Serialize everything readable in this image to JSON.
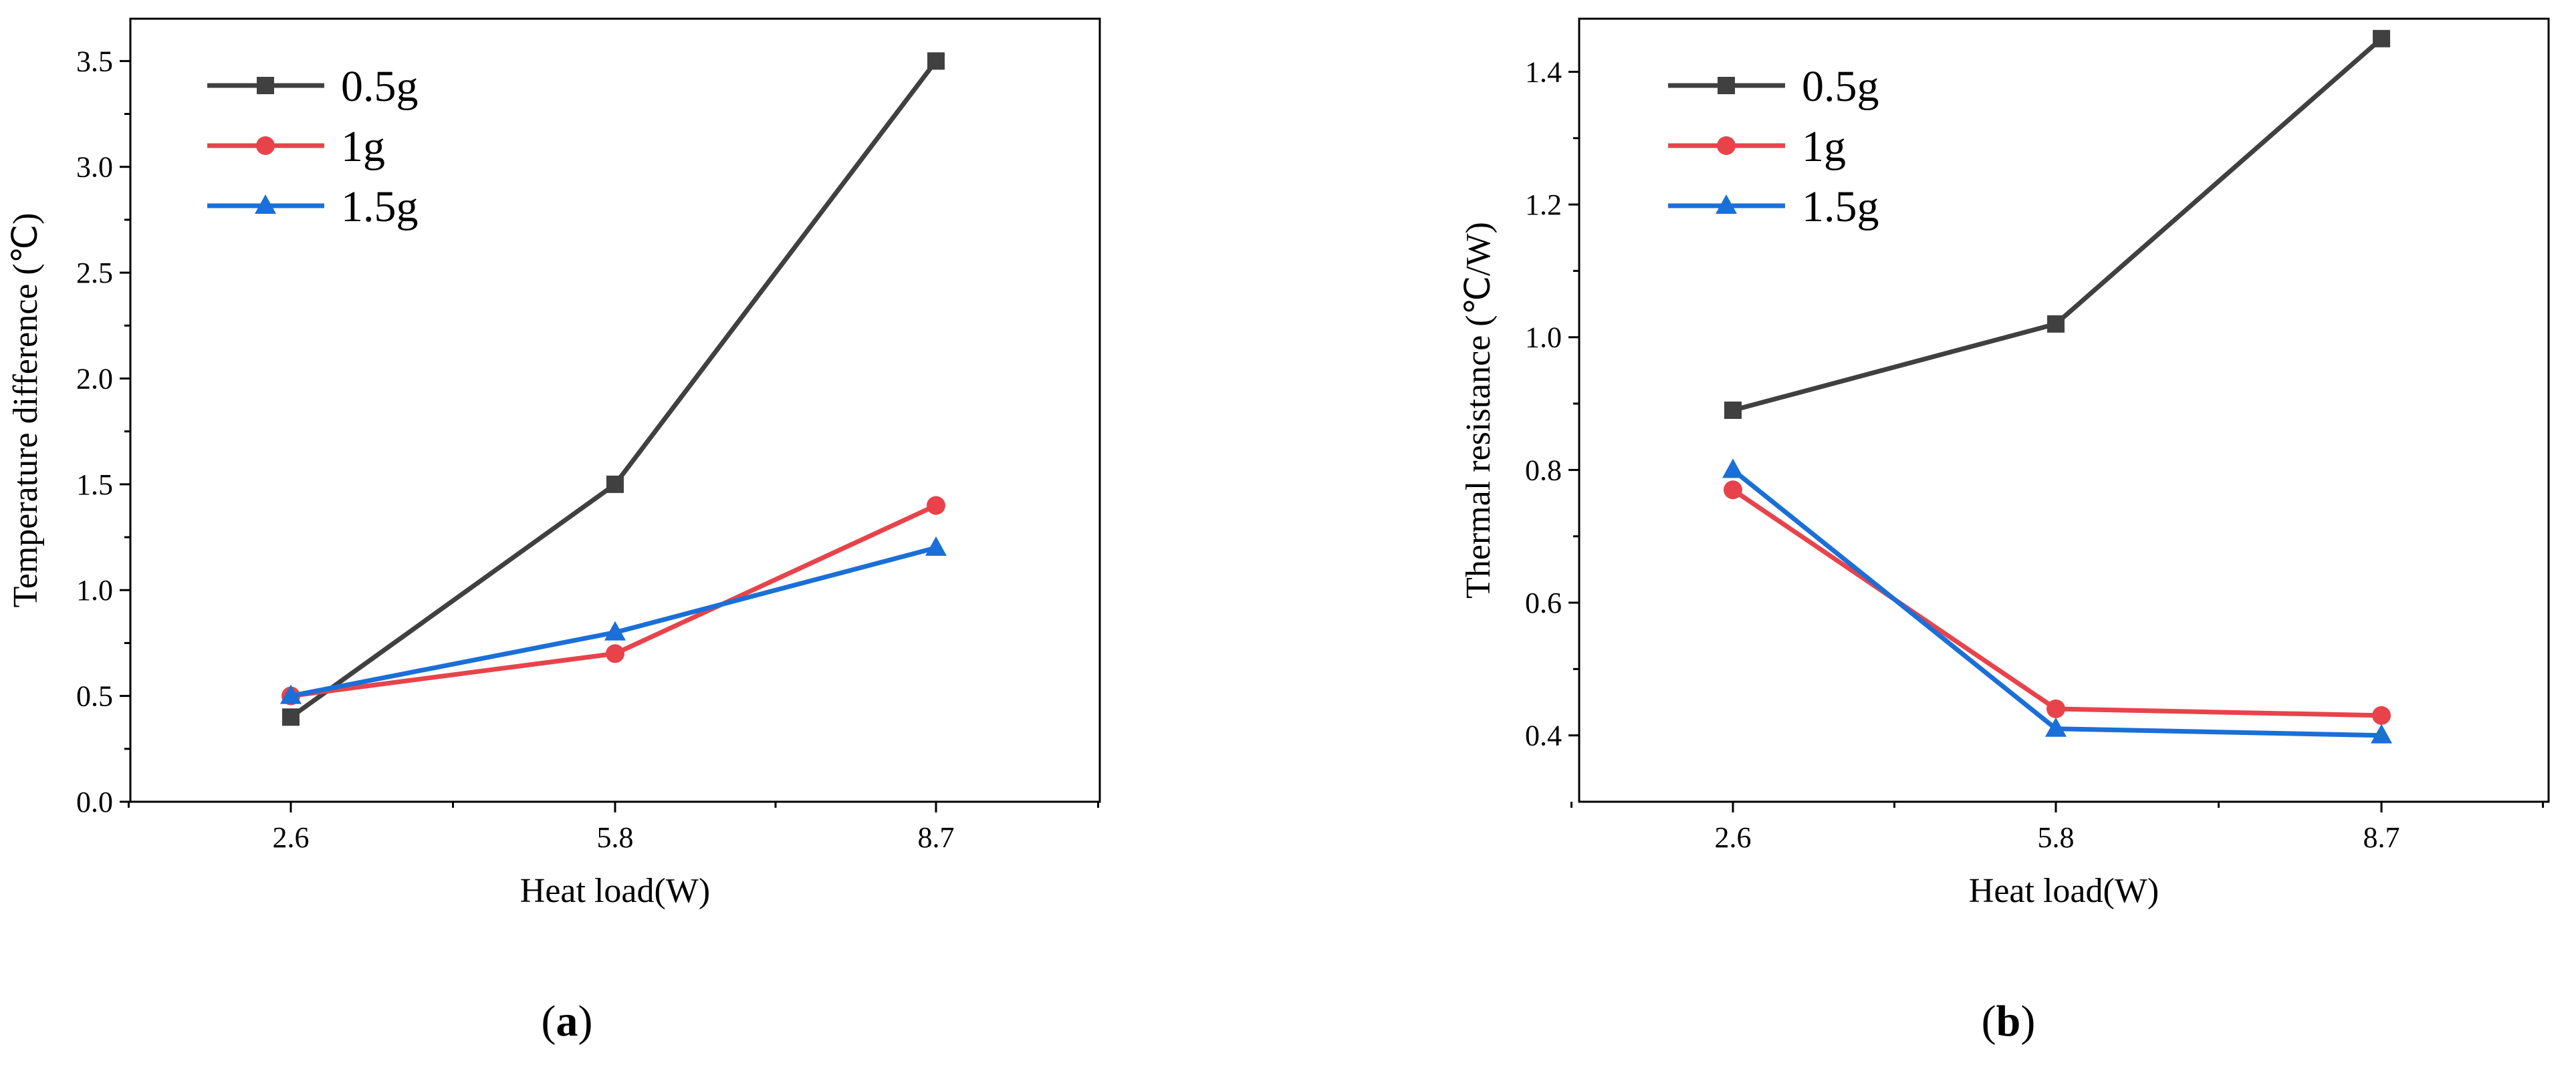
{
  "chart_data": [
    {
      "type": "line",
      "panel_label": {
        "open": "(",
        "letter": "a",
        "close": ")"
      },
      "title": "",
      "xlabel": "Heat load(W)",
      "ylabel": "Temperature difference (℃)",
      "categories": [
        "2.6",
        "5.8",
        "8.7"
      ],
      "ylim": [
        0.0,
        3.7
      ],
      "yticks": [
        "0.0",
        "0.5",
        "1.0",
        "1.5",
        "2.0",
        "2.5",
        "3.0",
        "3.5"
      ],
      "grid": false,
      "legend_position": "top-left",
      "series": [
        {
          "name": "0.5g",
          "color": "#404040",
          "marker": "square",
          "values": [
            0.4,
            1.5,
            3.5
          ]
        },
        {
          "name": "1g",
          "color": "#e8434b",
          "marker": "circle",
          "values": [
            0.5,
            0.7,
            1.4
          ]
        },
        {
          "name": "1.5g",
          "color": "#1a6fd8",
          "marker": "triangle",
          "values": [
            0.5,
            0.8,
            1.2
          ]
        }
      ]
    },
    {
      "type": "line",
      "panel_label": {
        "open": "(",
        "letter": "b",
        "close": ")"
      },
      "title": "",
      "xlabel": "Heat load(W)",
      "ylabel": "Thermal resistance (℃/W)",
      "categories": [
        "2.6",
        "5.8",
        "8.7"
      ],
      "ylim": [
        0.3,
        1.48
      ],
      "yticks": [
        "0.4",
        "0.6",
        "0.8",
        "1.0",
        "1.2",
        "1.4"
      ],
      "grid": false,
      "legend_position": "top-left",
      "series": [
        {
          "name": "0.5g",
          "color": "#404040",
          "marker": "square",
          "values": [
            0.89,
            1.02,
            1.45
          ]
        },
        {
          "name": "1g",
          "color": "#e8434b",
          "marker": "circle",
          "values": [
            0.77,
            0.44,
            0.43
          ]
        },
        {
          "name": "1.5g",
          "color": "#1a6fd8",
          "marker": "triangle",
          "values": [
            0.8,
            0.41,
            0.4
          ]
        }
      ]
    }
  ]
}
